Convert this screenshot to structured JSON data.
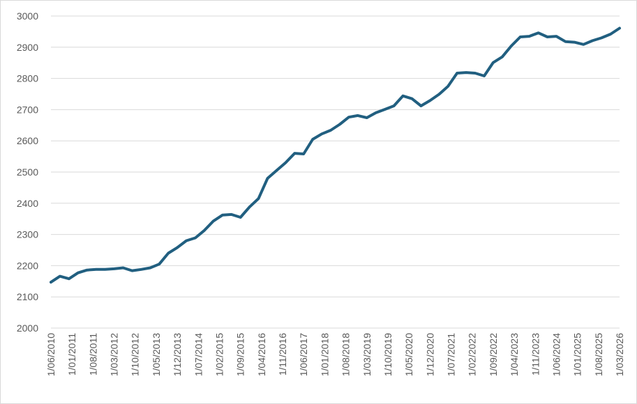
{
  "chart_data": {
    "type": "line",
    "x": [
      "1/06/2010",
      "1/09/2010",
      "1/12/2010",
      "1/03/2011",
      "1/06/2011",
      "1/09/2011",
      "1/12/2011",
      "1/03/2012",
      "1/06/2012",
      "1/09/2012",
      "1/12/2012",
      "1/03/2013",
      "1/06/2013",
      "1/09/2013",
      "1/12/2013",
      "1/03/2014",
      "1/06/2014",
      "1/09/2014",
      "1/12/2014",
      "1/03/2015",
      "1/06/2015",
      "1/09/2015",
      "1/12/2015",
      "1/03/2016",
      "1/06/2016",
      "1/09/2016",
      "1/12/2016",
      "1/03/2017",
      "1/06/2017",
      "1/09/2017",
      "1/12/2017",
      "1/03/2018",
      "1/06/2018",
      "1/09/2018",
      "1/12/2018",
      "1/03/2019",
      "1/06/2019",
      "1/09/2019",
      "1/12/2019",
      "1/03/2020",
      "1/06/2020",
      "1/09/2020",
      "1/12/2020",
      "1/03/2021",
      "1/06/2021",
      "1/09/2021",
      "1/12/2021",
      "1/03/2022",
      "1/06/2022",
      "1/09/2022",
      "1/12/2022",
      "1/03/2023",
      "1/06/2023",
      "1/09/2023",
      "1/12/2023",
      "1/03/2024",
      "1/06/2024",
      "1/09/2024",
      "1/12/2024",
      "1/03/2025",
      "1/06/2025",
      "1/09/2025",
      "1/12/2025",
      "1/03/2026"
    ],
    "series": [
      {
        "color": "#215f80",
        "values": [
          2147,
          2166,
          2158,
          2177,
          2186,
          2188,
          2188,
          2190,
          2193,
          2184,
          2188,
          2193,
          2205,
          2240,
          2258,
          2280,
          2289,
          2313,
          2343,
          2362,
          2364,
          2355,
          2388,
          2415,
          2480,
          2505,
          2530,
          2560,
          2558,
          2605,
          2622,
          2634,
          2653,
          2676,
          2681,
          2674,
          2690,
          2701,
          2712,
          2744,
          2735,
          2712,
          2729,
          2749,
          2775,
          2817,
          2819,
          2817,
          2808,
          2851,
          2869,
          2904,
          2933,
          2935,
          2946,
          2933,
          2935,
          2918,
          2916,
          2909,
          2921,
          2930,
          2942,
          2961
        ]
      }
    ],
    "xlim": [
      "1/06/2010",
      "1/03/2026"
    ],
    "xticks": [
      "1/06/2010",
      "1/01/2011",
      "1/08/2011",
      "1/03/2012",
      "1/10/2012",
      "1/05/2013",
      "1/12/2013",
      "1/07/2014",
      "1/02/2015",
      "1/09/2015",
      "1/04/2016",
      "1/11/2016",
      "1/06/2017",
      "1/01/2018",
      "1/08/2018",
      "1/03/2019",
      "1/10/2019",
      "1/05/2020",
      "1/12/2020",
      "1/07/2021",
      "1/02/2022",
      "1/09/2022",
      "1/04/2023",
      "1/11/2023",
      "1/06/2024",
      "1/01/2025",
      "1/08/2025",
      "1/03/2026"
    ],
    "ylim": [
      2000,
      3000
    ],
    "yticks": [
      2000,
      2100,
      2200,
      2300,
      2400,
      2500,
      2600,
      2700,
      2800,
      2900,
      3000
    ],
    "grid": true
  }
}
